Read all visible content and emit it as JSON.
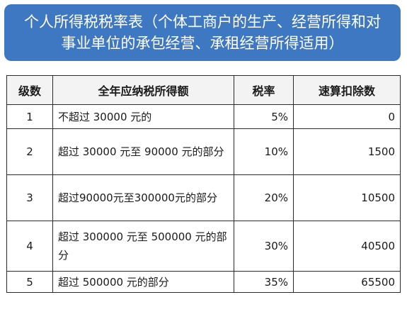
{
  "title": {
    "line1": "个人所得税税率表（个体工商户的生产、经营所得和对",
    "line2": "事业单位的承包经营、承租经营所得适用）"
  },
  "table": {
    "headers": [
      "级数",
      "全年应纳税所得额",
      "税率",
      "速算扣除数"
    ],
    "rows": [
      {
        "level": "1",
        "income": "不超过 30000 元的",
        "rate": "5%",
        "deduction": "0"
      },
      {
        "level": "2",
        "income": "超过 30000 元至 90000 元的部分",
        "rate": "10%",
        "deduction": "1500"
      },
      {
        "level": "3",
        "income": "超过90000元至300000元的部分",
        "rate": "20%",
        "deduction": "10500"
      },
      {
        "level": "4",
        "income": "超过 300000 元至 500000 元的部分",
        "rate": "30%",
        "deduction": "40500"
      },
      {
        "level": "5",
        "income": "超过 500000 元的部分",
        "rate": "35%",
        "deduction": "65500"
      }
    ]
  }
}
